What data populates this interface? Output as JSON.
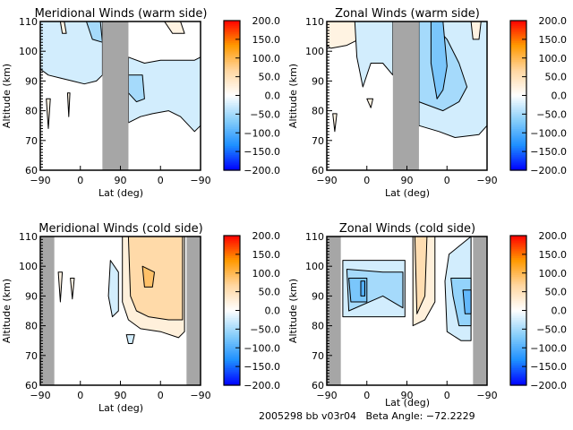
{
  "figure": {
    "footer": {
      "date_code": "2005298",
      "bb": "bb",
      "version": "v03r04",
      "beta_label": "Beta Angle:",
      "beta_value": "-72.2229"
    }
  },
  "chart_data": [
    {
      "id": "meridional-warm",
      "type": "heatmap",
      "subtype": "filled-contour",
      "title": "Meridional Winds (warm side)",
      "xlabel": "Lat (deg)",
      "ylabel": "Altitude (km)",
      "x_tick_labels": [
        "-90",
        "0",
        "90",
        "0",
        "-90"
      ],
      "y_ticks": [
        60,
        70,
        80,
        90,
        100,
        110
      ],
      "ylim": [
        60,
        110
      ],
      "x_orbit_positions": [
        0,
        1,
        2,
        3,
        4
      ],
      "no_data_bands": [
        [
          1.55,
          2.2
        ]
      ],
      "colorbar": {
        "ticks": [
          "200.0",
          "150.0",
          "100.0",
          "50.0",
          "0.0",
          "-50.0",
          "-100.0",
          "-150.0",
          "-200.0"
        ],
        "range": [
          -200,
          200
        ],
        "colors": [
          "#0000ff",
          "#1e90ff",
          "#87cefa",
          "#ffffff",
          "#ffd6a0",
          "#ff9900",
          "#ff0000"
        ]
      },
      "contour_levels": [
        -75,
        -50,
        -25,
        25,
        50
      ],
      "regions": [
        {
          "value": -25,
          "x": [
            0.0,
            0.3,
            0.6,
            0.9,
            1.2,
            1.55,
            1.55,
            1.4,
            1.1,
            0.8,
            0.5,
            0.2,
            0.0
          ],
          "y": [
            110,
            110,
            110,
            110,
            110,
            110,
            92,
            90,
            89,
            90,
            91,
            92,
            94
          ]
        },
        {
          "value": -50,
          "x": [
            1.15,
            1.5,
            1.55,
            1.3
          ],
          "y": [
            110,
            110,
            103,
            104
          ]
        },
        {
          "value": 20,
          "x": [
            0.5,
            0.6,
            0.65,
            0.55
          ],
          "y": [
            110,
            110,
            106,
            106
          ]
        },
        {
          "value": 20,
          "x": [
            0.15,
            0.25,
            0.2
          ],
          "y": [
            84,
            84,
            74
          ]
        },
        {
          "value": 20,
          "x": [
            0.68,
            0.74,
            0.71
          ],
          "y": [
            86,
            86,
            78
          ]
        },
        {
          "value": -25,
          "x": [
            2.2,
            2.6,
            3.0,
            3.4,
            3.85,
            4.0,
            4.0,
            3.85,
            3.5,
            3.2,
            2.8,
            2.5,
            2.2
          ],
          "y": [
            98,
            96,
            97,
            97,
            97,
            98,
            75,
            73,
            78,
            80,
            79,
            78,
            76
          ]
        },
        {
          "value": -50,
          "x": [
            2.2,
            2.55,
            2.6,
            2.4,
            2.2
          ],
          "y": [
            92,
            92,
            84,
            83,
            86
          ]
        },
        {
          "value": 20,
          "x": [
            3.1,
            3.5,
            3.6,
            3.3
          ],
          "y": [
            110,
            110,
            106,
            106
          ]
        }
      ]
    },
    {
      "id": "zonal-warm",
      "type": "heatmap",
      "subtype": "filled-contour",
      "title": "Zonal Winds (warm side)",
      "xlabel": "Lat (deg)",
      "ylabel": "Altitude (km)",
      "x_tick_labels": [
        "-90",
        "0",
        "90",
        "0",
        "-90"
      ],
      "y_ticks": [
        60,
        70,
        80,
        90,
        100,
        110
      ],
      "ylim": [
        60,
        110
      ],
      "x_orbit_positions": [
        0,
        1,
        2,
        3,
        4
      ],
      "no_data_bands": [
        [
          1.65,
          2.3
        ]
      ],
      "colorbar": {
        "ticks": [
          "200.0",
          "150.0",
          "100.0",
          "50.0",
          "0.0",
          "-50.0",
          "-100.0",
          "-150.0",
          "-200.0"
        ],
        "range": [
          -200,
          200
        ],
        "colors": [
          "#0000ff",
          "#1e90ff",
          "#87cefa",
          "#ffffff",
          "#ffd6a0",
          "#ff9900",
          "#ff0000"
        ]
      },
      "contour_levels": [
        -75,
        -50,
        -25,
        25,
        50
      ],
      "regions": [
        {
          "value": 20,
          "x": [
            0.0,
            0.7,
            0.8,
            0.5,
            0.1,
            0.0
          ],
          "y": [
            110,
            110,
            104,
            102,
            101,
            102
          ]
        },
        {
          "value": -25,
          "x": [
            0.7,
            1.65,
            1.65,
            1.4,
            1.1,
            0.9,
            0.75
          ],
          "y": [
            110,
            110,
            92,
            96,
            96,
            88,
            98
          ]
        },
        {
          "value": 20,
          "x": [
            0.15,
            0.25,
            0.2
          ],
          "y": [
            79,
            79,
            73
          ]
        },
        {
          "value": 20,
          "x": [
            1.0,
            1.15,
            1.1
          ],
          "y": [
            84,
            84,
            81
          ]
        },
        {
          "value": -25,
          "x": [
            2.3,
            3.0,
            3.8,
            4.0,
            4.0,
            3.8,
            3.2,
            2.8,
            2.3
          ],
          "y": [
            110,
            110,
            110,
            110,
            75,
            72,
            71,
            73,
            75
          ]
        },
        {
          "value": -50,
          "x": [
            2.3,
            2.6,
            3.0,
            3.3,
            3.5,
            3.3,
            2.9,
            2.5,
            2.3
          ],
          "y": [
            110,
            110,
            104,
            96,
            88,
            83,
            80,
            82,
            83
          ]
        },
        {
          "value": -75,
          "x": [
            2.6,
            2.9,
            3.0,
            2.9,
            2.75,
            2.6
          ],
          "y": [
            110,
            110,
            95,
            87,
            84,
            96
          ]
        },
        {
          "value": 20,
          "x": [
            3.6,
            3.85,
            3.8,
            3.65
          ],
          "y": [
            110,
            110,
            104,
            104
          ]
        }
      ]
    },
    {
      "id": "meridional-cold",
      "type": "heatmap",
      "subtype": "filled-contour",
      "title": "Meridional Winds (cold side)",
      "xlabel": "Lat (deg)",
      "ylabel": "Altitude (km)",
      "x_tick_labels": [
        "-90",
        "0",
        "90",
        "0",
        "-90"
      ],
      "y_ticks": [
        60,
        70,
        80,
        90,
        100,
        110
      ],
      "ylim": [
        60,
        110
      ],
      "x_orbit_positions": [
        0,
        1,
        2,
        3,
        4
      ],
      "no_data_bands": [
        [
          0.0,
          0.35
        ],
        [
          3.65,
          4.0
        ]
      ],
      "colorbar": {
        "ticks": [
          "200.0",
          "150.0",
          "100.0",
          "50.0",
          "0.0",
          "-50.0",
          "-100.0",
          "-150.0",
          "-200.0"
        ],
        "range": [
          -200,
          200
        ],
        "colors": [
          "#0000ff",
          "#1e90ff",
          "#87cefa",
          "#ffffff",
          "#ffd6a0",
          "#ff9900",
          "#ff0000"
        ]
      },
      "contour_levels": [
        -50,
        -25,
        25,
        50,
        75,
        100
      ],
      "regions": [
        {
          "value": 20,
          "x": [
            0.45,
            0.55,
            0.5
          ],
          "y": [
            98,
            98,
            88
          ]
        },
        {
          "value": 20,
          "x": [
            0.75,
            0.85,
            0.8
          ],
          "y": [
            96,
            96,
            89
          ]
        },
        {
          "value": -25,
          "x": [
            1.75,
            1.95,
            1.95,
            1.8,
            1.7
          ],
          "y": [
            102,
            98,
            85,
            83,
            90
          ]
        },
        {
          "value": -25,
          "x": [
            2.15,
            2.35,
            2.3,
            2.2
          ],
          "y": [
            77,
            77,
            74,
            74
          ]
        },
        {
          "value": 25,
          "x": [
            2.05,
            3.6,
            3.6,
            3.45,
            3.0,
            2.5,
            2.2,
            2.05
          ],
          "y": [
            110,
            110,
            78,
            76,
            78,
            79,
            82,
            88
          ]
        },
        {
          "value": 60,
          "x": [
            2.2,
            3.55,
            3.55,
            3.2,
            2.7,
            2.4,
            2.25
          ],
          "y": [
            110,
            110,
            82,
            82,
            83,
            85,
            90
          ]
        },
        {
          "value": 90,
          "x": [
            2.55,
            2.85,
            2.8,
            2.6
          ],
          "y": [
            100,
            98,
            93,
            93
          ]
        }
      ]
    },
    {
      "id": "zonal-cold",
      "type": "heatmap",
      "subtype": "filled-contour",
      "title": "Zonal Winds (cold side)",
      "xlabel": "Lat (deg)",
      "ylabel": "Altitude (km)",
      "x_tick_labels": [
        "-90",
        "0",
        "90",
        "0",
        "-90"
      ],
      "y_ticks": [
        60,
        70,
        80,
        90,
        100,
        110
      ],
      "ylim": [
        60,
        110
      ],
      "x_orbit_positions": [
        0,
        1,
        2,
        3,
        4
      ],
      "no_data_bands": [
        [
          0.0,
          0.35
        ],
        [
          3.65,
          4.0
        ]
      ],
      "colorbar": {
        "ticks": [
          "200.0",
          "150.0",
          "100.0",
          "50.0",
          "0.0",
          "-50.0",
          "-100.0",
          "-150.0",
          "-200.0"
        ],
        "range": [
          -200,
          200
        ],
        "colors": [
          "#0000ff",
          "#1e90ff",
          "#87cefa",
          "#ffffff",
          "#ffd6a0",
          "#ff9900",
          "#ff0000"
        ]
      },
      "contour_levels": [
        -100,
        -75,
        -50,
        -25,
        25,
        50
      ],
      "regions": [
        {
          "value": -25,
          "x": [
            0.4,
            1.95,
            1.95,
            0.4
          ],
          "y": [
            102,
            102,
            83,
            83
          ]
        },
        {
          "value": -50,
          "x": [
            0.5,
            1.4,
            1.9,
            1.9,
            1.4,
            0.55
          ],
          "y": [
            99,
            98,
            98,
            86,
            90,
            85
          ]
        },
        {
          "value": -75,
          "x": [
            0.55,
            1.0,
            1.0,
            0.6
          ],
          "y": [
            96,
            96,
            88,
            88
          ]
        },
        {
          "value": -100,
          "x": [
            0.85,
            0.95,
            0.95,
            0.85
          ],
          "y": [
            95,
            95,
            90,
            90
          ]
        },
        {
          "value": 25,
          "x": [
            2.15,
            2.7,
            2.7,
            2.45,
            2.15
          ],
          "y": [
            110,
            110,
            88,
            82,
            80
          ]
        },
        {
          "value": 55,
          "x": [
            2.2,
            2.5,
            2.45,
            2.25
          ],
          "y": [
            110,
            110,
            90,
            84
          ]
        },
        {
          "value": -25,
          "x": [
            3.05,
            3.6,
            3.6,
            3.35,
            3.0,
            2.95
          ],
          "y": [
            104,
            110,
            75,
            75,
            78,
            95
          ]
        },
        {
          "value": -60,
          "x": [
            3.1,
            3.6,
            3.6,
            3.3,
            3.15
          ],
          "y": [
            96,
            96,
            80,
            80,
            90
          ]
        },
        {
          "value": -90,
          "x": [
            3.4,
            3.6,
            3.6,
            3.45
          ],
          "y": [
            92,
            92,
            84,
            84
          ]
        }
      ]
    }
  ]
}
